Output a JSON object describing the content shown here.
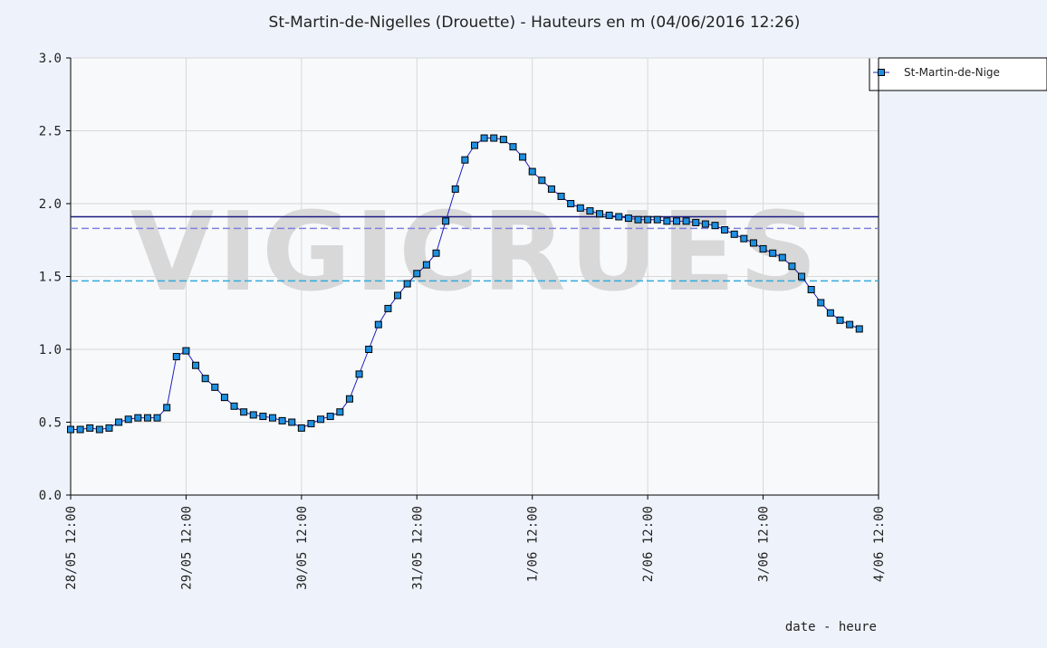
{
  "chart_data": {
    "type": "line",
    "title": "St-Martin-de-Nigelles (Drouette) - Hauteurs en m (04/06/2016 12:26)",
    "x_label": "date - heure",
    "watermark": "VIGICRUES",
    "xlim": [
      "28/05 12:00",
      "4/06 12:00"
    ],
    "xticks": [
      "28/05 12:00",
      "29/05 12:00",
      "30/05 12:00",
      "31/05 12:00",
      "1/06 12:00",
      "2/06 12:00",
      "3/06 12:00",
      "4/06 12:00"
    ],
    "ylim": [
      0,
      3
    ],
    "yticks": [
      {
        "value": 0,
        "label": "0.0"
      },
      {
        "value": 0.5,
        "label": "0.5"
      },
      {
        "value": 1,
        "label": "1.0"
      },
      {
        "value": 1.5,
        "label": "1.5"
      },
      {
        "value": 2,
        "label": "2.0"
      },
      {
        "value": 2.5,
        "label": "2.5"
      },
      {
        "value": 3,
        "label": "3.0"
      }
    ],
    "grid": true,
    "legend": "right",
    "reference_lines": [
      {
        "value": 1.91,
        "color": "#1a1a80",
        "dashed": false
      },
      {
        "value": 1.83,
        "color": "#8080e0",
        "dashed": true
      },
      {
        "value": 1.47,
        "color": "#33aadd",
        "dashed": true
      }
    ],
    "x": [
      "28/05 12:00",
      "28/05 14:00",
      "28/05 16:00",
      "28/05 18:00",
      "28/05 20:00",
      "28/05 22:00",
      "29/05 00:00",
      "29/05 02:00",
      "29/05 04:00",
      "29/05 06:00",
      "29/05 08:00",
      "29/05 10:00",
      "29/05 12:00",
      "29/05 14:00",
      "29/05 16:00",
      "29/05 18:00",
      "29/05 20:00",
      "29/05 22:00",
      "30/05 00:00",
      "30/05 02:00",
      "30/05 04:00",
      "30/05 06:00",
      "30/05 08:00",
      "30/05 10:00",
      "30/05 12:00",
      "30/05 14:00",
      "30/05 16:00",
      "30/05 18:00",
      "30/05 20:00",
      "30/05 22:00",
      "31/05 00:00",
      "31/05 02:00",
      "31/05 04:00",
      "31/05 06:00",
      "31/05 08:00",
      "31/05 10:00",
      "31/05 12:00",
      "31/05 14:00",
      "31/05 16:00",
      "31/05 18:00",
      "31/05 20:00",
      "31/05 22:00",
      "1/06 00:00",
      "1/06 02:00",
      "1/06 04:00",
      "1/06 06:00",
      "1/06 08:00",
      "1/06 10:00",
      "1/06 12:00",
      "1/06 14:00",
      "1/06 16:00",
      "1/06 18:00",
      "1/06 20:00",
      "1/06 22:00",
      "2/06 00:00",
      "2/06 02:00",
      "2/06 04:00",
      "2/06 06:00",
      "2/06 08:00",
      "2/06 10:00",
      "2/06 12:00",
      "2/06 14:00",
      "2/06 16:00",
      "2/06 18:00",
      "2/06 20:00",
      "2/06 22:00",
      "3/06 00:00",
      "3/06 02:00",
      "3/06 04:00",
      "3/06 06:00",
      "3/06 08:00",
      "3/06 10:00",
      "3/06 12:00",
      "3/06 14:00",
      "3/06 16:00",
      "3/06 18:00",
      "3/06 20:00",
      "3/06 22:00",
      "4/06 00:00",
      "4/06 02:00",
      "4/06 04:00",
      "4/06 06:00",
      "4/06 08:00"
    ],
    "series": [
      {
        "name": "St-Martin-de-Nige",
        "color": "#1e90e0",
        "line_color": "#2020c0",
        "values": [
          0.45,
          0.45,
          0.46,
          0.45,
          0.46,
          0.5,
          0.52,
          0.53,
          0.53,
          0.53,
          0.6,
          0.95,
          0.99,
          0.89,
          0.8,
          0.74,
          0.67,
          0.61,
          0.57,
          0.55,
          0.54,
          0.53,
          0.51,
          0.5,
          0.46,
          0.49,
          0.52,
          0.54,
          0.57,
          0.66,
          0.83,
          1.0,
          1.17,
          1.28,
          1.37,
          1.45,
          1.52,
          1.58,
          1.66,
          1.88,
          2.1,
          2.3,
          2.4,
          2.45,
          2.45,
          2.44,
          2.39,
          2.32,
          2.22,
          2.16,
          2.1,
          2.05,
          2.0,
          1.97,
          1.95,
          1.93,
          1.92,
          1.91,
          1.9,
          1.89,
          1.89,
          1.89,
          1.88,
          1.88,
          1.88,
          1.87,
          1.86,
          1.85,
          1.82,
          1.79,
          1.76,
          1.73,
          1.69,
          1.66,
          1.63,
          1.57,
          1.5,
          1.41,
          1.32,
          1.25,
          1.2,
          1.17,
          1.14
        ]
      }
    ]
  }
}
